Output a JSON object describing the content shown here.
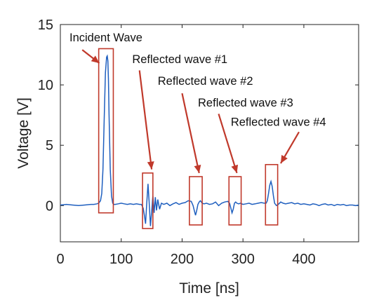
{
  "chart_data": {
    "type": "line",
    "xlabel": "Time [ns]",
    "ylabel": "Voltage [V]",
    "xlim": [
      0,
      490
    ],
    "ylim": [
      -3,
      15
    ],
    "xticks": [
      0,
      100,
      200,
      300,
      400
    ],
    "yticks": [
      0,
      5,
      10,
      15
    ],
    "grid": false,
    "series_color": "#1f5fbf",
    "annotation_color": "#c0392b",
    "series": [
      {
        "x": [
          0,
          10,
          20,
          30,
          40,
          50,
          55,
          60,
          63,
          66,
          68,
          70,
          72,
          74,
          76,
          77,
          78,
          79,
          80,
          82,
          84,
          86,
          88,
          90,
          95,
          100,
          105,
          110,
          115,
          120,
          125,
          130,
          133,
          136,
          138,
          140,
          142,
          144,
          146,
          148,
          150,
          152,
          154,
          156,
          158,
          160,
          163,
          166,
          170,
          175,
          180,
          185,
          190,
          195,
          200,
          205,
          210,
          215,
          218,
          220,
          222,
          224,
          226,
          228,
          230,
          233,
          236,
          240,
          245,
          250,
          255,
          260,
          265,
          270,
          275,
          278,
          280,
          282,
          284,
          286,
          288,
          290,
          293,
          296,
          300,
          305,
          310,
          315,
          320,
          325,
          330,
          335,
          338,
          340,
          342,
          344,
          346,
          348,
          350,
          352,
          355,
          358,
          362,
          366,
          370,
          375,
          380,
          385,
          390,
          395,
          400,
          405,
          410,
          415,
          420,
          425,
          430,
          435,
          440,
          445,
          450,
          455,
          460,
          465,
          470,
          475,
          480,
          485,
          490
        ],
        "y": [
          0.05,
          0.1,
          0.05,
          0.0,
          0.05,
          0.1,
          0.1,
          0.15,
          0.2,
          0.4,
          1.0,
          3.0,
          7.0,
          11.0,
          12.3,
          12.4,
          12.0,
          10.5,
          7.5,
          3.0,
          0.8,
          0.2,
          0.1,
          0.1,
          0.15,
          0.2,
          0.15,
          0.1,
          0.15,
          0.1,
          0.15,
          0.1,
          0.1,
          -0.2,
          -0.8,
          -1.5,
          0.3,
          1.8,
          0.2,
          -1.7,
          -0.5,
          0.8,
          -0.6,
          0.7,
          -0.4,
          0.5,
          -0.3,
          0.2,
          0.1,
          0.2,
          0.0,
          0.15,
          0.25,
          0.1,
          0.2,
          0.25,
          0.4,
          0.35,
          0.0,
          -0.4,
          -0.8,
          -0.4,
          0.1,
          0.3,
          0.4,
          0.2,
          0.15,
          0.2,
          0.1,
          0.15,
          0.3,
          0.0,
          0.2,
          0.3,
          0.35,
          0.2,
          -0.2,
          -0.6,
          -0.3,
          0.2,
          0.3,
          0.2,
          0.15,
          0.2,
          0.1,
          0.15,
          0.2,
          0.1,
          0.15,
          0.2,
          0.25,
          0.2,
          0.2,
          0.4,
          1.0,
          1.7,
          2.0,
          1.6,
          0.8,
          0.2,
          0.0,
          0.1,
          0.3,
          0.2,
          0.15,
          0.2,
          0.25,
          0.15,
          0.2,
          0.1,
          0.15,
          0.1,
          0.05,
          0.15,
          0.1,
          0.0,
          0.1,
          0.15,
          0.05,
          0.1,
          0.0,
          0.1,
          0.05,
          0.1,
          0.0,
          0.05,
          0.05,
          0.0,
          0.05
        ]
      }
    ],
    "annotations": [
      {
        "label": "Incident Wave",
        "box_x": [
          63,
          87
        ],
        "box_y": [
          -0.6,
          13.0
        ],
        "text_at": [
          15,
          13.6
        ],
        "arrow_from": [
          36,
          12.9
        ],
        "arrow_to": [
          64,
          11.8
        ]
      },
      {
        "label": "Reflected wave #1",
        "box_x": [
          135,
          152
        ],
        "box_y": [
          -1.9,
          2.7
        ],
        "text_at": [
          118,
          11.8
        ],
        "arrow_from": [
          130,
          11.2
        ],
        "arrow_to": [
          150,
          3.0
        ]
      },
      {
        "label": "Reflected wave #2",
        "box_x": [
          212,
          233
        ],
        "box_y": [
          -1.6,
          2.4
        ],
        "text_at": [
          160,
          10.0
        ],
        "arrow_from": [
          200,
          9.3
        ],
        "arrow_to": [
          228,
          2.7
        ]
      },
      {
        "label": "Reflected wave #3",
        "box_x": [
          277,
          297
        ],
        "box_y": [
          -1.6,
          2.4
        ],
        "text_at": [
          226,
          8.2
        ],
        "arrow_from": [
          260,
          7.6
        ],
        "arrow_to": [
          290,
          2.7
        ]
      },
      {
        "label": "Reflected wave #4",
        "box_x": [
          337,
          357
        ],
        "box_y": [
          -1.6,
          3.4
        ],
        "text_at": [
          280,
          6.6
        ],
        "arrow_from": [
          392,
          6.1
        ],
        "arrow_to": [
          362,
          3.5
        ]
      }
    ]
  }
}
